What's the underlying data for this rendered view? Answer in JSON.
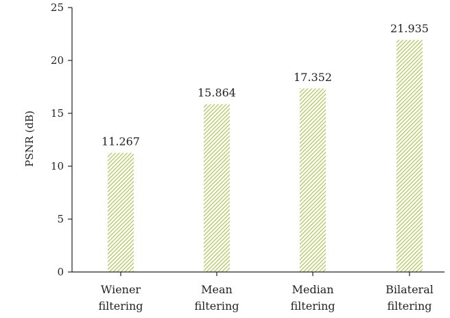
{
  "chart_data": {
    "type": "bar",
    "categories": [
      [
        "Wiener",
        "filtering"
      ],
      [
        "Mean",
        "filtering"
      ],
      [
        "Median",
        "filtering"
      ],
      [
        "Bilateral",
        "filtering"
      ]
    ],
    "values": [
      11.267,
      15.864,
      17.352,
      21.935
    ],
    "data_labels": [
      "11.267",
      "15.864",
      "17.352",
      "21.935"
    ],
    "title": "",
    "xlabel": "",
    "ylabel": "PSNR (dB)",
    "ylim": [
      0,
      25
    ],
    "yticks": [
      0,
      5,
      10,
      15,
      20,
      25
    ],
    "grid": false,
    "bar_color": "#a8c44a",
    "bar_fill": "diagonal-hatch"
  }
}
